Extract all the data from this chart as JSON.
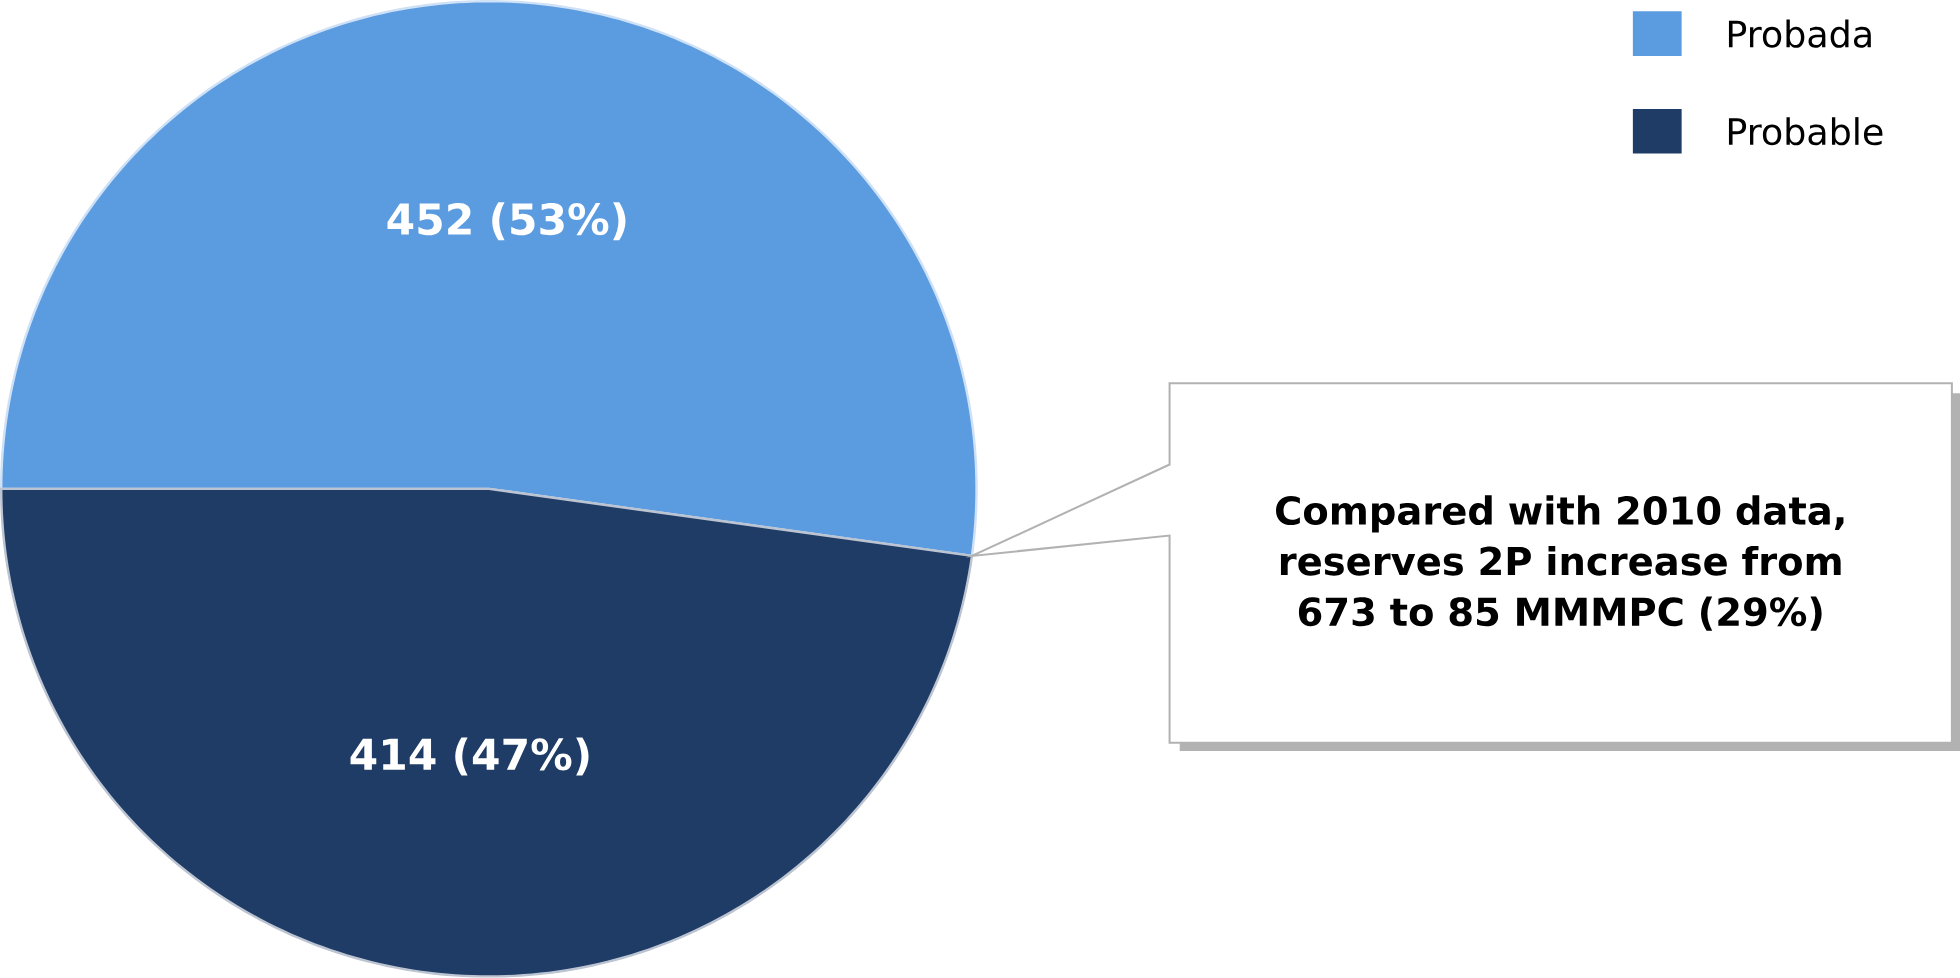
{
  "chart_data": {
    "type": "pie",
    "categories": [
      "Probada",
      "Probable"
    ],
    "values": [
      452,
      414
    ],
    "colors": [
      "#5b9be0",
      "#1f3c66"
    ],
    "value_labels": [
      "452 (53%)",
      "414 (47%)"
    ],
    "legend": "top right",
    "annotations": [
      "Compared with 2010 data, reserves 2P increase from 673 to 85 MMMPC (29%)"
    ]
  }
}
